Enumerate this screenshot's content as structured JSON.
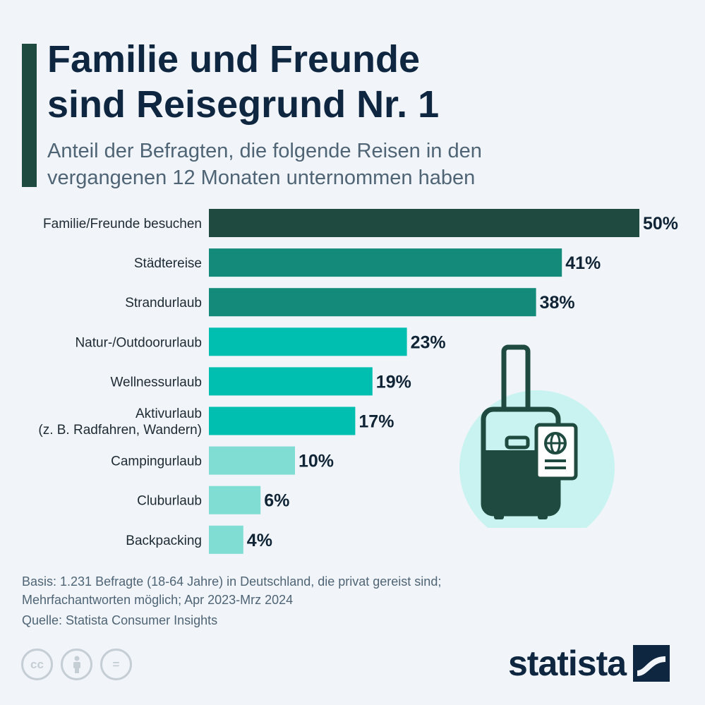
{
  "header": {
    "title_line1": "Familie und Freunde",
    "title_line2": "sind Reisegrund Nr. 1",
    "subtitle_line1": "Anteil der Befragten, die folgende Reisen in den",
    "subtitle_line2": "vergangenen 12 Monaten unternommen haben"
  },
  "chart_data": {
    "type": "bar",
    "orientation": "horizontal",
    "unit": "%",
    "xlim": [
      0,
      50
    ],
    "grid": false,
    "categories": [
      [
        "Familie/Freunde besuchen"
      ],
      [
        "Städtereise"
      ],
      [
        "Strandurlaub"
      ],
      [
        "Natur-/Outdoorurlaub"
      ],
      [
        "Wellnessurlaub"
      ],
      [
        "Aktivurlaub",
        "(z. B. Radfahren, Wandern)"
      ],
      [
        "Campingurlaub"
      ],
      [
        "Cluburlaub"
      ],
      [
        "Backpacking"
      ]
    ],
    "values": [
      50,
      41,
      38,
      23,
      19,
      17,
      10,
      6,
      4
    ],
    "value_labels": [
      "50%",
      "41%",
      "38%",
      "23%",
      "19%",
      "17%",
      "10%",
      "6%",
      "4%"
    ],
    "colors": [
      "#1f4a3f",
      "#138a7a",
      "#138a7a",
      "#00bfb0",
      "#00bfb0",
      "#00bfb0",
      "#7fddd3",
      "#7fddd3",
      "#7fddd3"
    ]
  },
  "footer": {
    "basis_line1": "Basis: 1.231 Befragte (18-64 Jahre) in Deutschland, die privat gereist sind;",
    "basis_line2": "Mehrfachantworten möglich; Apr 2023-Mrz 2024",
    "source": "Quelle: Statista Consumer Insights",
    "cc_icons": [
      "cc-icon",
      "attribution-icon",
      "no-derivatives-icon"
    ],
    "cc_symbol": "cc",
    "nd_symbol": "=",
    "logo_text": "statista"
  },
  "illustration": {
    "icon": "suitcase-passport-icon"
  }
}
